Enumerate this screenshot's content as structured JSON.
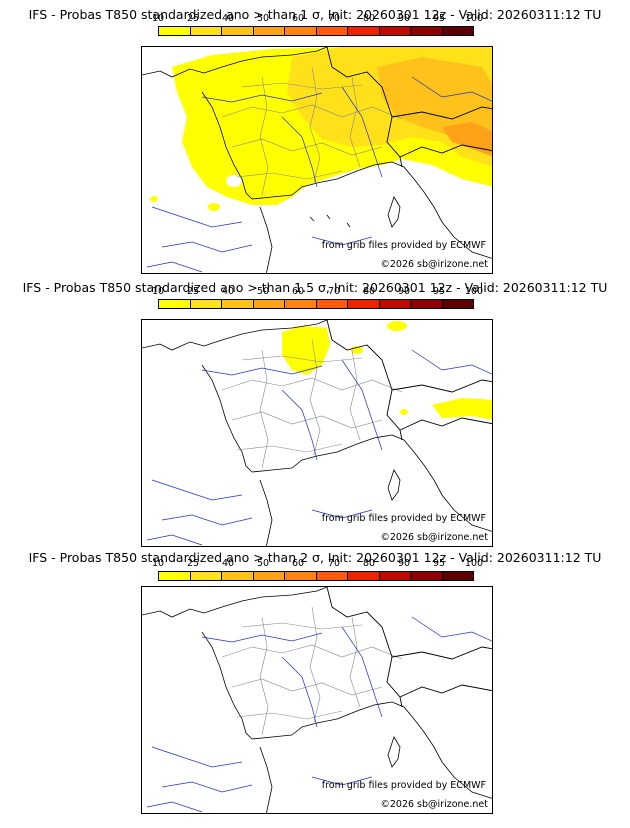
{
  "colorbar": {
    "ticks": [
      "10",
      "25",
      "40",
      "50",
      "60",
      "70",
      "80",
      "90",
      "95",
      "100"
    ],
    "colors": [
      "#ffff00",
      "#ffe11a",
      "#ffc21a",
      "#ffa21a",
      "#ff8213",
      "#ff5a0d",
      "#ee2400",
      "#bf0a00",
      "#8c0000",
      "#5c0000"
    ]
  },
  "panels": [
    {
      "title": "IFS - Probas T850  standardized ano > than 1 σ, Init: 20260301 12z - Valid: 20260311:12 TU",
      "source": "from grib files provided by ECMWF",
      "copyright": "©2026 sb@irizone.net"
    },
    {
      "title": "IFS - Probas T850  standardized ano > than 1.5 σ, Init: 20260301 12z - Valid: 20260311:12 TU",
      "source": "from grib files provided by ECMWF",
      "copyright": "©2026 sb@irizone.net"
    },
    {
      "title": "IFS - Probas T850  standardized ano > than 2 σ, Init: 20260301 12z - Valid: 20260311:12 TU",
      "source": "from grib files provided by ECMWF",
      "copyright": "©2026 sb@irizone.net"
    }
  ]
}
